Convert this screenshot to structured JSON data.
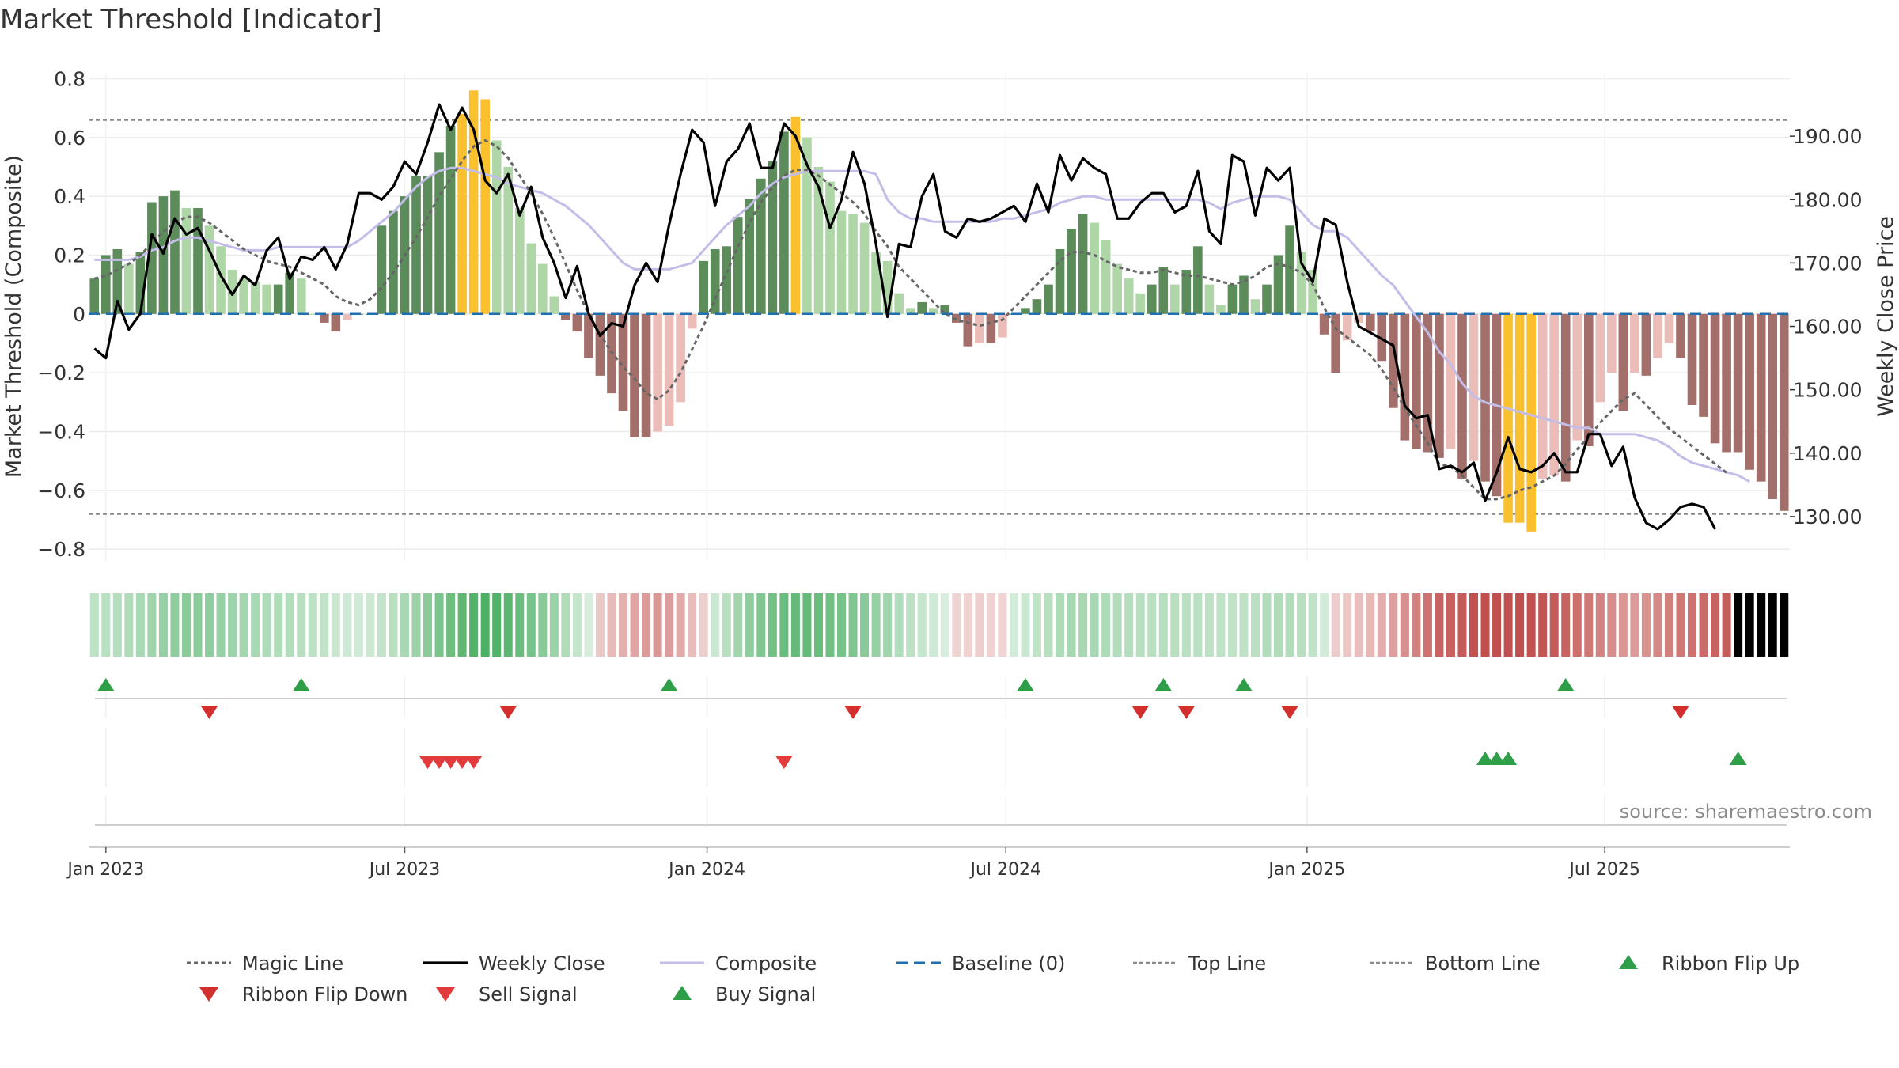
{
  "chart_data": {
    "type": "bar",
    "title": "Market Threshold [Indicator]",
    "ylabel": "Market Threshold (Composite)",
    "y2label": "Weekly Close Price",
    "ylim": [
      -0.84,
      0.82
    ],
    "y2lim": [
      123.0,
      200.0
    ],
    "yticks": [
      0.8,
      0.6,
      0.4,
      0.2,
      0,
      -0.2,
      -0.4,
      -0.6,
      -0.8
    ],
    "ytick_labels": [
      "0.8",
      "0.6",
      "0.4",
      "0.2",
      "0",
      "−0.2",
      "−0.4",
      "−0.6",
      "−0.8"
    ],
    "y2ticks": [
      190,
      180,
      170,
      160,
      150,
      140,
      130
    ],
    "y2tick_labels": [
      "190.00",
      "180.00",
      "170.00",
      "160.00",
      "150.00",
      "140.00",
      "130.00"
    ],
    "xticks": [
      {
        "label": "Jan 2023",
        "week": 1.5
      },
      {
        "label": "Jul 2023",
        "week": 27.5
      },
      {
        "label": "Jan 2024",
        "week": 53.8
      },
      {
        "label": "Jul 2024",
        "week": 79.8
      },
      {
        "label": "Jan 2025",
        "week": 106.0
      },
      {
        "label": "Jul 2025",
        "week": 131.9
      }
    ],
    "top_line": 0.66,
    "bottom_line": -0.68,
    "source": "source: sharemaestro.com",
    "series": [
      {
        "name": "Composite",
        "values": [
          0.12,
          0.2,
          0.22,
          0.17,
          0.21,
          0.38,
          0.4,
          0.42,
          0.36,
          0.36,
          0.3,
          0.23,
          0.15,
          0.12,
          0.11,
          0.1,
          0.1,
          0.14,
          0.12,
          0.0,
          -0.03,
          -0.06,
          -0.02,
          0.0,
          0.0,
          0.3,
          0.35,
          0.4,
          0.47,
          0.47,
          0.55,
          0.64,
          0.68,
          0.76,
          0.73,
          0.59,
          0.5,
          0.36,
          0.24,
          0.17,
          0.06,
          -0.02,
          -0.06,
          -0.15,
          -0.21,
          -0.27,
          -0.33,
          -0.42,
          -0.42,
          -0.4,
          -0.38,
          -0.3,
          -0.05,
          0.18,
          0.22,
          0.23,
          0.33,
          0.39,
          0.46,
          0.52,
          0.62,
          0.67,
          0.6,
          0.5,
          0.45,
          0.35,
          0.34,
          0.31,
          0.21,
          0.18,
          0.07,
          0.02,
          0.04,
          0.02,
          0.03,
          -0.03,
          -0.11,
          -0.1,
          -0.1,
          -0.08,
          0.0,
          0.02,
          0.05,
          0.1,
          0.22,
          0.29,
          0.34,
          0.31,
          0.25,
          0.17,
          0.12,
          0.07,
          0.1,
          0.16,
          0.1,
          0.15,
          0.23,
          0.1,
          0.03,
          0.1,
          0.13,
          0.05,
          0.1,
          0.2,
          0.3,
          0.21,
          0.15,
          -0.07,
          -0.2,
          -0.09,
          -0.03,
          -0.06,
          -0.16,
          -0.32,
          -0.43,
          -0.46,
          -0.47,
          -0.49,
          -0.46,
          -0.56,
          -0.5,
          -0.57,
          -0.62,
          -0.71,
          -0.71,
          -0.74,
          -0.56,
          -0.55,
          -0.57,
          -0.43,
          -0.45,
          -0.3,
          -0.2,
          -0.33,
          -0.2,
          -0.21,
          -0.15,
          -0.1,
          -0.15,
          -0.31,
          -0.35,
          -0.44,
          -0.47,
          -0.47,
          -0.53,
          -0.57,
          -0.63,
          -0.67
        ]
      },
      {
        "name": "Weekly Close",
        "values": [
          156.5,
          155.0,
          164.0,
          159.5,
          162.0,
          174.5,
          171.5,
          177.0,
          174.5,
          175.5,
          172.0,
          168.0,
          165.0,
          168.0,
          166.5,
          172.0,
          174.0,
          167.5,
          171.0,
          170.5,
          172.5,
          169.0,
          173.0,
          181.0,
          181.0,
          180.0,
          182.0,
          186.0,
          184.0,
          189.0,
          195.0,
          191.0,
          194.5,
          191.0,
          183.0,
          181.0,
          184.0,
          177.5,
          182.0,
          174.0,
          170.0,
          164.5,
          169.5,
          162.0,
          158.5,
          160.5,
          160.0,
          166.5,
          170.0,
          167.0,
          176.0,
          184.0,
          191.0,
          189.0,
          179.0,
          186.0,
          188.0,
          192.0,
          185.0,
          185.0,
          192.0,
          190.0,
          185.5,
          182.0,
          175.5,
          180.0,
          187.5,
          182.5,
          173.0,
          161.5,
          173.0,
          172.5,
          180.5,
          184.0,
          175.0,
          174.0,
          177.0,
          176.5,
          177.0,
          178.0,
          179.0,
          176.5,
          182.5,
          178.0,
          187.0,
          183.0,
          186.5,
          185.0,
          184.0,
          177.0,
          177.0,
          179.5,
          181.0,
          181.0,
          178.0,
          179.0,
          184.5,
          175.0,
          173.0,
          187.0,
          186.0,
          177.5,
          185.0,
          183.0,
          185.0,
          170.0,
          167.0,
          177.0,
          176.0,
          167.0,
          160.0,
          159.0,
          158.0,
          157.0,
          147.5,
          145.5,
          146.0,
          137.5,
          138.0,
          137.0,
          138.5,
          132.5,
          137.0,
          142.5,
          137.5,
          137.0,
          138.0,
          140.0,
          137.0,
          137.0,
          143.0,
          143.0,
          138.0,
          141.0,
          133.0,
          129.0,
          128.0,
          129.5,
          131.5,
          132.0,
          131.5,
          128.0
        ]
      },
      {
        "name": "Composite",
        "values": [
          170.5,
          170.5,
          170.5,
          170.5,
          171.0,
          172.0,
          172.5,
          173.5,
          174.0,
          174.0,
          173.5,
          173.0,
          172.5,
          172.0,
          172.0,
          172.0,
          172.5,
          172.5,
          172.5,
          172.5,
          172.5,
          172.5,
          172.5,
          173.5,
          175.0,
          176.5,
          178.0,
          180.0,
          182.0,
          183.5,
          184.5,
          185.0,
          185.0,
          184.5,
          184.0,
          183.5,
          182.5,
          182.0,
          181.5,
          181.0,
          180.0,
          179.0,
          177.5,
          176.0,
          174.0,
          172.0,
          170.0,
          169.0,
          169.0,
          169.0,
          169.0,
          169.5,
          170.0,
          172.0,
          174.0,
          176.0,
          177.5,
          179.0,
          181.0,
          182.5,
          183.5,
          184.0,
          184.5,
          184.5,
          184.5,
          184.5,
          184.5,
          184.5,
          184.0,
          180.0,
          178.0,
          177.0,
          177.0,
          176.5,
          176.5,
          176.5,
          176.5,
          176.5,
          176.5,
          177.0,
          177.0,
          177.5,
          178.0,
          178.5,
          179.5,
          180.0,
          180.5,
          180.5,
          180.0,
          180.0,
          180.0,
          180.0,
          180.0,
          180.0,
          180.0,
          180.0,
          180.0,
          179.5,
          178.5,
          179.5,
          180.0,
          180.5,
          180.5,
          180.5,
          180.0,
          178.0,
          176.0,
          175.0,
          175.0,
          174.0,
          172.0,
          170.0,
          168.0,
          166.5,
          164.0,
          161.5,
          159.0,
          156.0,
          154.0,
          151.0,
          149.0,
          148.0,
          147.5,
          147.0,
          146.5,
          146.0,
          145.5,
          145.0,
          144.5,
          144.0,
          144.0,
          143.0,
          143.0,
          143.0,
          143.0,
          142.5,
          142.0,
          141.0,
          139.5,
          138.5,
          138.0,
          137.5,
          137.0,
          136.5,
          135.5
        ]
      },
      {
        "name": "Magic Line",
        "values": [
          0.12,
          0.13,
          0.15,
          0.17,
          0.2,
          0.24,
          0.28,
          0.31,
          0.33,
          0.33,
          0.31,
          0.28,
          0.25,
          0.22,
          0.2,
          0.18,
          0.17,
          0.16,
          0.14,
          0.12,
          0.1,
          0.06,
          0.04,
          0.03,
          0.05,
          0.09,
          0.14,
          0.2,
          0.26,
          0.33,
          0.4,
          0.46,
          0.52,
          0.57,
          0.59,
          0.57,
          0.53,
          0.47,
          0.41,
          0.34,
          0.26,
          0.17,
          0.08,
          0.0,
          -0.07,
          -0.13,
          -0.18,
          -0.22,
          -0.27,
          -0.29,
          -0.26,
          -0.2,
          -0.12,
          -0.04,
          0.05,
          0.14,
          0.23,
          0.31,
          0.38,
          0.43,
          0.47,
          0.49,
          0.49,
          0.47,
          0.44,
          0.41,
          0.38,
          0.34,
          0.28,
          0.23,
          0.16,
          0.12,
          0.08,
          0.04,
          0.0,
          -0.02,
          -0.03,
          -0.04,
          -0.03,
          -0.02,
          0.02,
          0.06,
          0.1,
          0.14,
          0.18,
          0.21,
          0.21,
          0.2,
          0.18,
          0.16,
          0.15,
          0.14,
          0.14,
          0.15,
          0.14,
          0.13,
          0.13,
          0.12,
          0.11,
          0.1,
          0.11,
          0.13,
          0.16,
          0.17,
          0.16,
          0.14,
          0.1,
          0.02,
          -0.05,
          -0.08,
          -0.11,
          -0.14,
          -0.19,
          -0.25,
          -0.32,
          -0.38,
          -0.44,
          -0.51,
          -0.52,
          -0.55,
          -0.59,
          -0.63,
          -0.63,
          -0.62,
          -0.6,
          -0.59,
          -0.57,
          -0.55,
          -0.51,
          -0.46,
          -0.42,
          -0.37,
          -0.33,
          -0.29,
          -0.27,
          -0.31,
          -0.35,
          -0.39,
          -0.42,
          -0.45,
          -0.48,
          -0.51,
          -0.54
        ]
      }
    ],
    "bar_colors": [
      {
        "name": "strong-positive",
        "color": "#5b8c5a"
      },
      {
        "name": "weak-positive",
        "color": "#aed6a6"
      },
      {
        "name": "extreme",
        "color": "#fbc02d"
      },
      {
        "name": "strong-negative",
        "color": "#a26f6a"
      },
      {
        "name": "weak-negative",
        "color": "#ebbdb8"
      }
    ],
    "signals": {
      "ribbon_flip_up": [
        1.5,
        18.5,
        50.5,
        81.5,
        93.5,
        100.5,
        128.5
      ],
      "ribbon_flip_down": [
        10.5,
        36.5,
        66.5,
        91.5,
        95.5,
        104.5,
        138.5
      ],
      "sell": [
        29.5,
        30.5,
        31.5,
        32.5,
        33.5,
        60.5
      ],
      "buy": [
        121.5,
        122.5,
        123.5,
        143.5
      ]
    },
    "legend": [
      {
        "label": "Magic Line",
        "style": "dotted-dark"
      },
      {
        "label": "Weekly Close",
        "style": "solid-black"
      },
      {
        "label": "Composite",
        "style": "solid-lavender"
      },
      {
        "label": "Baseline (0)",
        "style": "dashed-blue"
      },
      {
        "label": "Top Line",
        "style": "dotted-grey"
      },
      {
        "label": "Bottom Line",
        "style": "dotted-grey"
      },
      {
        "label": "Ribbon Flip Up",
        "style": "triangle-up-green"
      },
      {
        "label": "Ribbon Flip Down",
        "style": "triangle-down-red"
      },
      {
        "label": "Sell Signal",
        "style": "triangle-down-red"
      },
      {
        "label": "Buy Signal",
        "style": "triangle-up-green"
      }
    ],
    "colors": {
      "weekly_close": "#000000",
      "composite_line": "#c3bde8",
      "magic_line": "#666666",
      "baseline": "#1f6fb2",
      "ref_lines": "#888888",
      "flip_up": "#2e9e48",
      "flip_down": "#d32f2f",
      "sell": "#e23b3b",
      "buy": "#2e9e48",
      "ribbon_positive": "#4caf63",
      "ribbon_negative": "#c0504d"
    }
  }
}
